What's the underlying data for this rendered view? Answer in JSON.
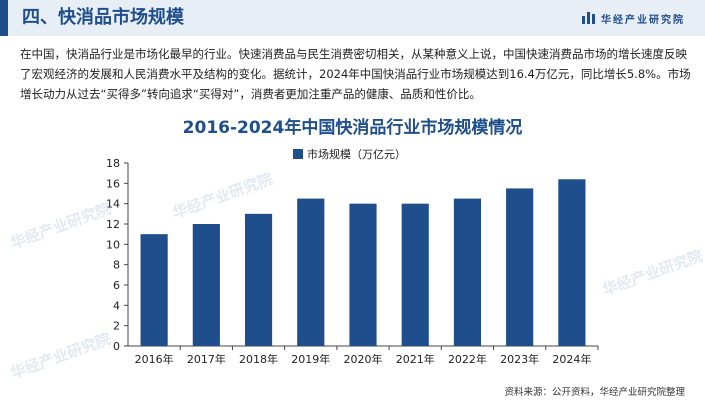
{
  "header": {
    "section_title": "四、快消品市场规模",
    "brand": "华经产业研究院"
  },
  "paragraph": "在中国，快消品行业是市场化最早的行业。快速消费品与民生消费密切相关，从某种意义上说，中国快速消费品市场的增长速度反映了宏观经济的发展和人民消费水平及结构的变化。据统计，2024年中国快消品行业市场规模达到16.4万亿元，同比增长5.8%。市场增长动力从过去“买得多”转向追求“买得对”，消费者更加注重产品的健康、品质和性价比。",
  "source": "资料来源：公开资料，华经产业研究院整理",
  "colors": {
    "accent": "#1f4e8c",
    "bar": "#1f4e8c"
  },
  "chart_data": {
    "type": "bar",
    "title": "2016-2024年中国快消品行业市场规模情况",
    "categories": [
      "2016年",
      "2017年",
      "2018年",
      "2019年",
      "2020年",
      "2021年",
      "2022年",
      "2023年",
      "2024年"
    ],
    "series": [
      {
        "name": "市场规模（万亿元）",
        "values": [
          11.0,
          12.0,
          13.0,
          14.5,
          14.0,
          14.0,
          14.5,
          15.5,
          16.4
        ]
      }
    ],
    "ylim": [
      0,
      18
    ],
    "yticks": [
      0,
      2,
      4,
      6,
      8,
      10,
      12,
      14,
      16,
      18
    ],
    "legend": "top-left",
    "grid": false
  }
}
